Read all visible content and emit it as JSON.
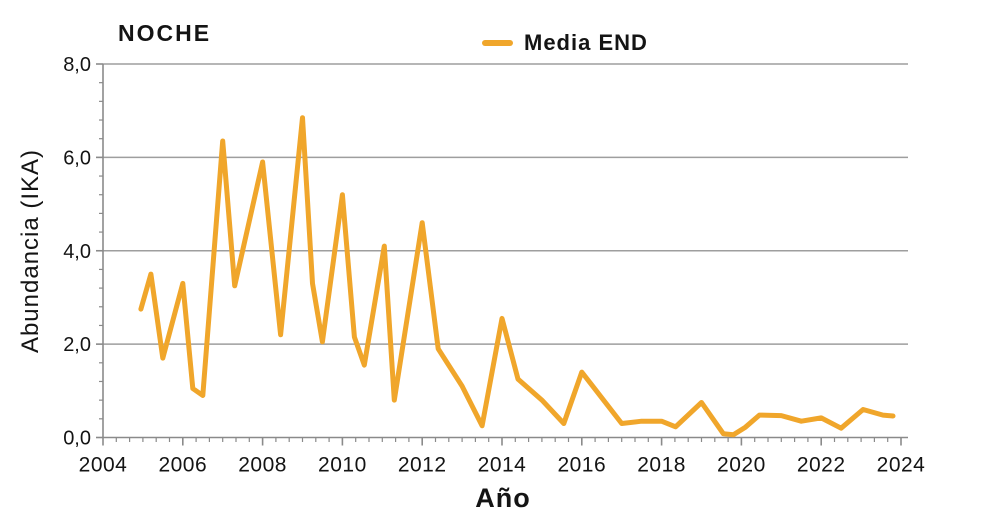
{
  "header": {
    "title": "NOCHE"
  },
  "legend": {
    "items": [
      {
        "label": "Media END",
        "color": "#F0A62B"
      }
    ]
  },
  "colors": {
    "line": "#F0A62B",
    "grid": "#9E9E9E",
    "axis": "#8A8A8A",
    "text": "#141414"
  },
  "chart_data": {
    "type": "line",
    "title": "NOCHE",
    "xlabel": "Año",
    "ylabel": "Abundancia (IKA)",
    "xlim": [
      2004,
      2024
    ],
    "ylim": [
      0,
      8
    ],
    "grid": "horizontal",
    "legend_position": "top-center",
    "xticks": {
      "values": [
        2004,
        2006,
        2008,
        2010,
        2012,
        2014,
        2016,
        2018,
        2020,
        2022,
        2024
      ],
      "labels": [
        "2004",
        "2006",
        "2008",
        "2010",
        "2012",
        "2014",
        "2016",
        "2018",
        "2020",
        "2022",
        "2024"
      ],
      "minor_divisions": 6
    },
    "yticks": {
      "values": [
        0,
        2,
        4,
        6,
        8
      ],
      "labels": [
        "0,0",
        "2,0",
        "4,0",
        "6,0",
        "8,0"
      ],
      "minor_divisions": 5
    },
    "series": [
      {
        "name": "Media END",
        "color": "#F0A62B",
        "points": [
          [
            2004.95,
            2.75
          ],
          [
            2005.2,
            3.5
          ],
          [
            2005.5,
            1.7
          ],
          [
            2006.0,
            3.3
          ],
          [
            2006.25,
            1.05
          ],
          [
            2006.5,
            0.9
          ],
          [
            2007.0,
            6.35
          ],
          [
            2007.3,
            3.25
          ],
          [
            2008.0,
            5.9
          ],
          [
            2008.45,
            2.2
          ],
          [
            2009.0,
            6.85
          ],
          [
            2009.25,
            3.3
          ],
          [
            2009.5,
            2.05
          ],
          [
            2010.0,
            5.2
          ],
          [
            2010.3,
            2.15
          ],
          [
            2010.55,
            1.55
          ],
          [
            2011.05,
            4.1
          ],
          [
            2011.3,
            0.8
          ],
          [
            2012.0,
            4.6
          ],
          [
            2012.4,
            1.9
          ],
          [
            2013.0,
            1.1
          ],
          [
            2013.5,
            0.25
          ],
          [
            2014.0,
            2.55
          ],
          [
            2014.4,
            1.25
          ],
          [
            2015.0,
            0.8
          ],
          [
            2015.55,
            0.3
          ],
          [
            2016.0,
            1.4
          ],
          [
            2017.0,
            0.3
          ],
          [
            2017.5,
            0.35
          ],
          [
            2018.0,
            0.35
          ],
          [
            2018.35,
            0.23
          ],
          [
            2019.0,
            0.75
          ],
          [
            2019.55,
            0.08
          ],
          [
            2019.8,
            0.06
          ],
          [
            2020.1,
            0.22
          ],
          [
            2020.45,
            0.48
          ],
          [
            2021.0,
            0.47
          ],
          [
            2021.5,
            0.35
          ],
          [
            2022.0,
            0.42
          ],
          [
            2022.5,
            0.2
          ],
          [
            2023.05,
            0.6
          ],
          [
            2023.55,
            0.48
          ],
          [
            2023.8,
            0.46
          ]
        ]
      }
    ]
  }
}
